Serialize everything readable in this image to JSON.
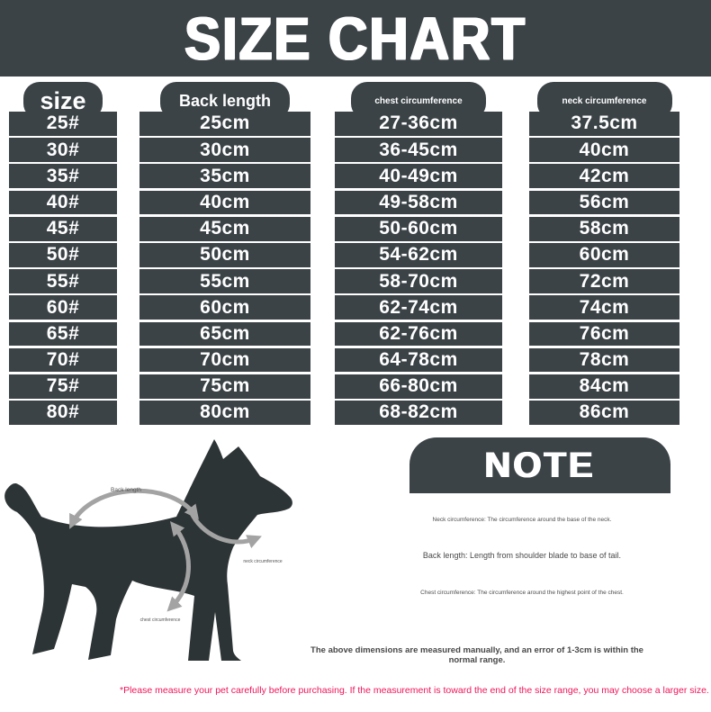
{
  "title": "SIZE CHART",
  "chart_data": {
    "type": "table",
    "title": "SIZE CHART",
    "columns": [
      {
        "key": "size",
        "header": "size",
        "values": [
          "25#",
          "30#",
          "35#",
          "40#",
          "45#",
          "50#",
          "55#",
          "60#",
          "65#",
          "70#",
          "75#",
          "80#"
        ]
      },
      {
        "key": "back-length",
        "header": "Back length",
        "values": [
          "25cm",
          "30cm",
          "35cm",
          "40cm",
          "45cm",
          "50cm",
          "55cm",
          "60cm",
          "65cm",
          "70cm",
          "75cm",
          "80cm"
        ]
      },
      {
        "key": "chest-circumference",
        "header": "chest circumference",
        "values": [
          "27-36cm",
          "36-45cm",
          "40-49cm",
          "49-58cm",
          "50-60cm",
          "54-62cm",
          "58-70cm",
          "62-74cm",
          "62-76cm",
          "64-78cm",
          "66-80cm",
          "68-82cm"
        ]
      },
      {
        "key": "neck-circumference",
        "header": "neck circumference",
        "values": [
          "37.5cm",
          "40cm",
          "42cm",
          "56cm",
          "58cm",
          "60cm",
          "72cm",
          "74cm",
          "76cm",
          "78cm",
          "84cm",
          "86cm"
        ]
      }
    ]
  },
  "diagram": {
    "labels": {
      "back": "Back length",
      "neck": "neck circumference",
      "chest": "chest circumference"
    }
  },
  "note": {
    "title": "NOTE",
    "lines": [
      "Neck circumference: The circumference around the base of the neck.",
      "Back length: Length from shoulder blade to base of tail.",
      "Chest circumference: The circumference around the highest point of the chest."
    ],
    "disclaimer": "The above dimensions are measured manually, and an error of 1-3cm is within the normal range."
  },
  "footer": {
    "warning": "*Please measure your pet carefully before purchasing. If the measurement is toward the end of the size range, you may choose a larger size."
  },
  "colors": {
    "panel_dark": "#3b4347",
    "dog_silhouette": "#2d3436",
    "arrow_gray": "#a3a3a3",
    "warning_red": "#f0145a"
  }
}
